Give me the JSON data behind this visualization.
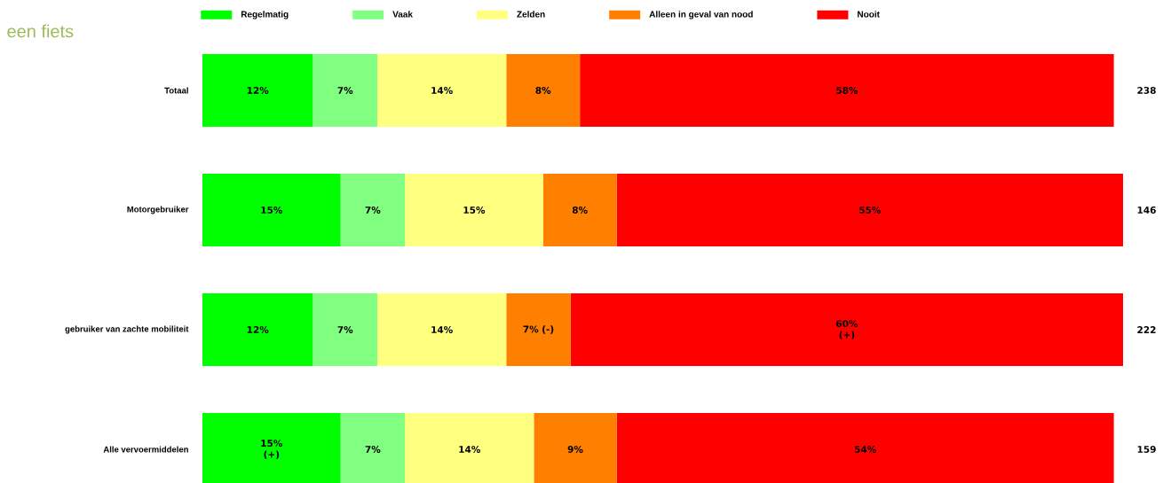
{
  "chart_data": {
    "type": "bar",
    "orientation": "horizontal",
    "stacked": true,
    "title": "een fiets",
    "legend": "top",
    "categories": [
      "Totaal",
      "Motorgebruiker",
      "gebruiker van zachte mobiliteit",
      "Alle vervoermiddelen"
    ],
    "series": [
      {
        "name": "Regelmatig",
        "color": "#00ff00",
        "values": [
          12,
          15,
          12,
          15
        ],
        "value_labels": [
          "12%",
          "15%",
          "12%",
          "15% (+)"
        ]
      },
      {
        "name": "Vaak",
        "color": "#80ff80",
        "values": [
          7,
          7,
          7,
          7
        ],
        "value_labels": [
          "7%",
          "7%",
          "7%",
          "7%"
        ]
      },
      {
        "name": "Zelden",
        "color": "#ffff80",
        "values": [
          14,
          15,
          14,
          14
        ],
        "value_labels": [
          "14%",
          "15%",
          "14%",
          "14%"
        ]
      },
      {
        "name": "Alleen in geval van nood",
        "color": "#ff8000",
        "values": [
          8,
          8,
          7,
          9
        ],
        "value_labels": [
          "8%",
          "8%",
          "7% (-)",
          "9%"
        ]
      },
      {
        "name": "Nooit",
        "color": "#ff0000",
        "values": [
          58,
          55,
          60,
          54
        ],
        "value_labels": [
          "58%",
          "55%",
          "60% (+)",
          "54%"
        ]
      }
    ],
    "annotations": [
      "238",
      "146",
      "222",
      "159"
    ]
  }
}
